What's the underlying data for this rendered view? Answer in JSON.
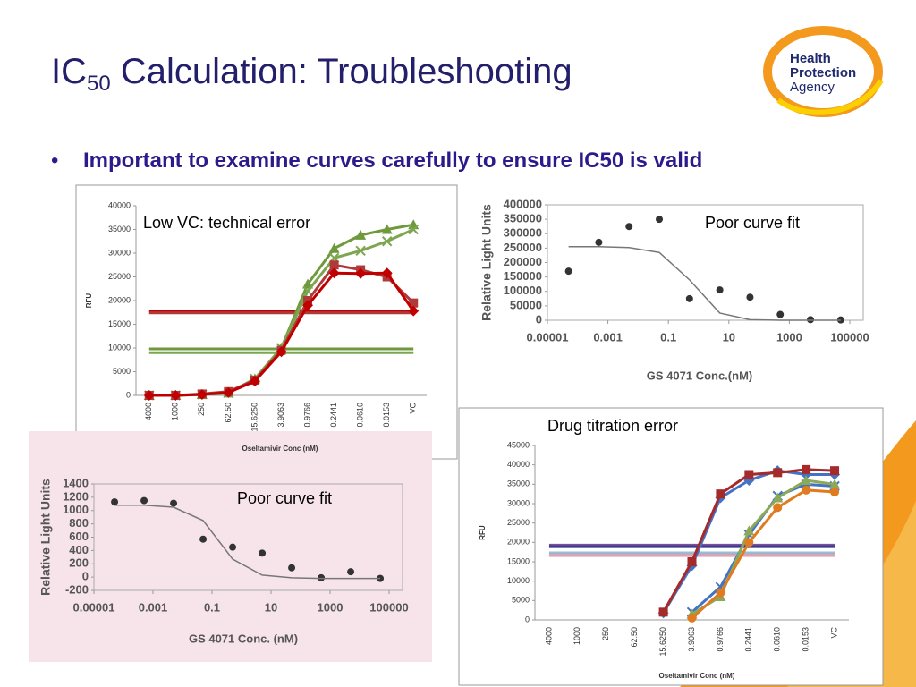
{
  "slide": {
    "title": "IC",
    "title_subscript": "50",
    "title_rest": " Calculation: Troubleshooting",
    "bullet": "Important to examine curves carefully to ensure IC50 is valid",
    "logo": [
      "Health",
      "Protection",
      "Agency"
    ]
  },
  "chart_data": [
    {
      "type": "line",
      "annotation": "Low VC: technical error",
      "y_label": "RFU",
      "x_label": "Oseltamivir Conc (nM)",
      "categories": [
        "4000",
        "1000",
        "250",
        "62.50",
        "15.6250",
        "3.9063",
        "0.9766",
        "0.2441",
        "0.0610",
        "0.0153",
        "VC"
      ],
      "ylim": [
        0,
        40000
      ],
      "yticks": [
        0,
        5000,
        10000,
        15000,
        20000,
        25000,
        30000,
        35000,
        40000
      ],
      "series": [
        {
          "color": "#6e9a3c",
          "marker": "triangle",
          "values": [
            0,
            0,
            200,
            500,
            3500,
            10000,
            23500,
            31000,
            33800,
            35000,
            36000
          ]
        },
        {
          "color": "#7ea650",
          "marker": "cross",
          "values": [
            0,
            0,
            200,
            500,
            3500,
            10000,
            22000,
            29000,
            30500,
            32500,
            35000
          ]
        },
        {
          "color": "#b03a3a",
          "marker": "square",
          "values": [
            0,
            0,
            300,
            800,
            3200,
            9500,
            20000,
            27500,
            26500,
            25000,
            19500
          ]
        },
        {
          "color": "#c00000",
          "marker": "diamond",
          "values": [
            0,
            0,
            200,
            600,
            3000,
            9200,
            19000,
            25800,
            25700,
            25800,
            17800
          ]
        }
      ],
      "hlines": [
        {
          "value": 17800,
          "color": "#c00000"
        },
        {
          "value": 17400,
          "color": "#b03a3a"
        },
        {
          "value": 9800,
          "color": "#6e9a3c"
        },
        {
          "value": 9000,
          "color": "#7ea650"
        }
      ]
    },
    {
      "type": "scatter",
      "annotation": "Poor curve fit",
      "y_label": "Relative Light Units",
      "x_label": "GS 4071 Conc.(nM)",
      "xscale": "log",
      "xlim": [
        1e-05,
        100000
      ],
      "xticks": [
        1e-05,
        0.001,
        0.1,
        10,
        1000,
        100000
      ],
      "ylim": [
        0,
        400000
      ],
      "yticks": [
        0,
        50000,
        100000,
        150000,
        200000,
        250000,
        300000,
        350000,
        400000
      ],
      "x": [
        5e-05,
        0.0005,
        0.005,
        0.05,
        0.5,
        5,
        50,
        500,
        5000,
        50000
      ],
      "series": [
        {
          "color": "#333333",
          "mode": "markers",
          "values": [
            170000,
            270000,
            325000,
            350000,
            75000,
            105000,
            80000,
            20000,
            2000,
            1000
          ]
        },
        {
          "color": "#777777",
          "mode": "line",
          "values": [
            255000,
            255000,
            252000,
            235000,
            140000,
            25000,
            2000,
            0,
            0,
            0
          ]
        }
      ]
    },
    {
      "type": "scatter",
      "annotation": "Poor curve fit",
      "y_label": "Relative Light Units",
      "x_label": "GS 4071 Conc. (nM)",
      "xscale": "log",
      "xlim": [
        1e-05,
        100000
      ],
      "xticks": [
        1e-05,
        0.001,
        0.1,
        10,
        1000,
        100000
      ],
      "ylim": [
        -200,
        1400
      ],
      "yticks": [
        -200,
        0,
        200,
        400,
        600,
        800,
        1000,
        1200,
        1400
      ],
      "x": [
        5e-05,
        0.0005,
        0.005,
        0.05,
        0.5,
        5,
        50,
        500,
        5000,
        50000
      ],
      "series": [
        {
          "color": "#333333",
          "mode": "markers",
          "values": [
            1130,
            1150,
            1110,
            570,
            450,
            360,
            140,
            -10,
            80,
            -20
          ]
        },
        {
          "color": "#777777",
          "mode": "line",
          "values": [
            1080,
            1080,
            1050,
            850,
            270,
            30,
            -10,
            -20,
            -20,
            -20
          ]
        }
      ]
    },
    {
      "type": "line",
      "annotation": "Drug titration error",
      "y_label": "RFU",
      "x_label": "Oseltamivir Conc (nM)",
      "categories": [
        "4000",
        "1000",
        "250",
        "62.50",
        "15.6250",
        "3.9063",
        "0.9766",
        "0.2441",
        "0.0610",
        "0.0153",
        "VC"
      ],
      "ylim": [
        0,
        45000
      ],
      "yticks": [
        0,
        5000,
        10000,
        15000,
        20000,
        25000,
        30000,
        35000,
        40000,
        45000
      ],
      "series": [
        {
          "color": "#4472c4",
          "marker": "diamond",
          "values": [
            null,
            null,
            null,
            null,
            1800,
            14000,
            31500,
            36000,
            38500,
            37500,
            37500
          ]
        },
        {
          "color": "#a52a2a",
          "marker": "square",
          "values": [
            null,
            null,
            null,
            null,
            2000,
            15000,
            32500,
            37500,
            38000,
            38800,
            38500
          ]
        },
        {
          "color": "#4472c4",
          "marker": "cross",
          "values": [
            null,
            null,
            null,
            null,
            null,
            2000,
            8500,
            22000,
            32000,
            35000,
            34500
          ]
        },
        {
          "color": "#8aaa5a",
          "marker": "triangle",
          "values": [
            null,
            null,
            null,
            null,
            null,
            1500,
            6000,
            23000,
            31500,
            36000,
            35000
          ]
        },
        {
          "color": "#e07b20",
          "marker": "circle",
          "values": [
            null,
            null,
            null,
            null,
            null,
            500,
            7000,
            20000,
            29000,
            33500,
            33000
          ]
        }
      ],
      "hlines": [
        {
          "value": 19300,
          "color": "#7a4fa0"
        },
        {
          "value": 18900,
          "color": "#3a3a8a"
        },
        {
          "value": 17300,
          "color": "#8fc0e0"
        },
        {
          "value": 16900,
          "color": "#b0b0b0"
        },
        {
          "value": 16600,
          "color": "#e8a0b8"
        }
      ]
    }
  ]
}
